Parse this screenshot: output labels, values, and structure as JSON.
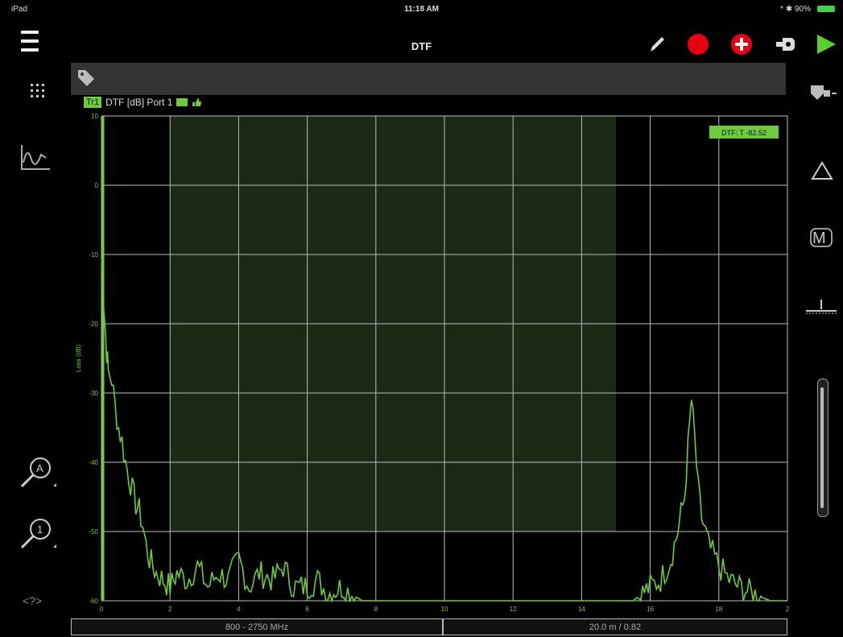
{
  "status": {
    "device": "iPad",
    "time": "11:18 AM",
    "battery": "* ✱ 90%"
  },
  "header": {
    "title": "DTF"
  },
  "trace": {
    "label": "Tr1",
    "title": "DTF [dB] Port 1"
  },
  "marker_readout": "DTF: T -82.52",
  "frequency_range": "800 - 2750 MHz",
  "distance_info": "20.0 m / 0.82",
  "help_label": "<?>",
  "colors": {
    "trace": "#6ecb3e",
    "record": "#e60012",
    "play": "#5bd12e",
    "gate": "#1b2a14",
    "grid": "#d0d0d0"
  },
  "chart_data": {
    "type": "line",
    "ylabel": "Loss (dB)",
    "xlim": [
      0,
      20
    ],
    "ylim": [
      -60,
      10
    ],
    "x_ticks": [
      "0",
      "2",
      "4",
      "6",
      "8",
      "10",
      "12",
      "14",
      "16",
      "18",
      "2"
    ],
    "y_ticks": [
      "10",
      "0",
      "-10",
      "-20",
      "-30",
      "-40",
      "-50",
      "-60"
    ],
    "gate_region": [
      2,
      15
    ],
    "gate_bottom": -50,
    "series": [
      {
        "x": [
          0,
          0.05,
          0.1,
          0.15,
          0.2,
          0.3,
          0.4,
          0.5,
          0.6,
          0.7,
          0.8,
          0.9,
          1.0,
          1.1,
          1.2,
          1.3,
          1.4,
          1.5,
          1.6,
          1.8,
          2.0,
          2.2,
          2.5,
          2.8,
          3.1,
          3.4,
          3.7,
          4.0,
          4.3,
          4.6,
          5.0,
          5.3,
          5.6,
          6.0,
          6.3,
          6.6,
          7.0,
          7.3,
          7.6,
          8.0,
          9,
          10,
          11,
          12,
          13,
          14,
          15,
          15.5,
          16,
          16.3,
          16.6,
          16.8,
          17.0,
          17.1,
          17.2,
          17.3,
          17.4,
          17.5,
          17.7,
          18.0,
          18.3,
          18.6,
          19.0,
          19.5,
          20
        ],
        "values": [
          -10,
          -15,
          -20,
          -24,
          -27,
          -28,
          -32,
          -35,
          -37,
          -40,
          -42,
          -44,
          -46,
          -47,
          -49,
          -52,
          -54,
          -55,
          -56,
          -57,
          -58,
          -56,
          -57,
          -55,
          -58,
          -56,
          -57,
          -54,
          -58,
          -56,
          -57,
          -55,
          -58,
          -58,
          -57,
          -59,
          -58,
          -59,
          -60,
          -60,
          -60,
          -60,
          -60,
          -60,
          -60,
          -60,
          -60,
          -60,
          -58,
          -57,
          -54,
          -50,
          -45,
          -38,
          -31,
          -37,
          -44,
          -48,
          -52,
          -55,
          -57,
          -58,
          -59,
          -60,
          -60
        ]
      }
    ]
  }
}
